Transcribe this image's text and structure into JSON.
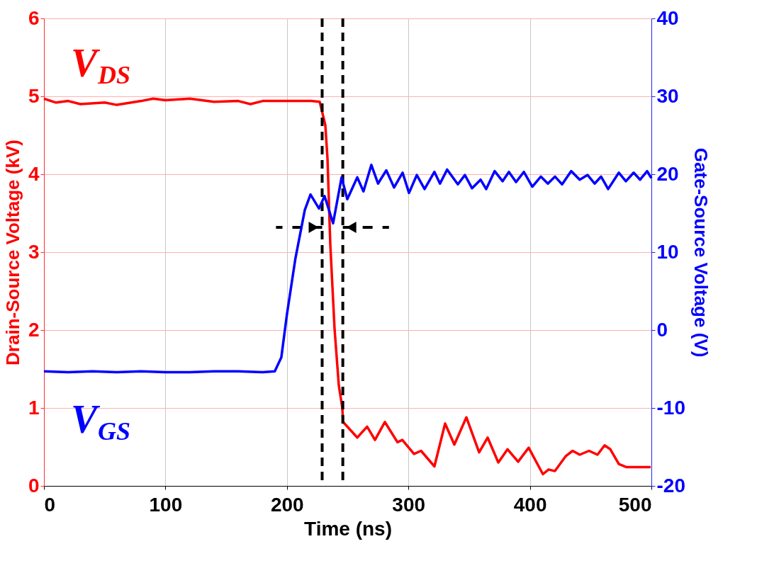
{
  "chart_data": {
    "type": "line",
    "xlabel": "Time (ns)",
    "ylabel": "Drain-Source Voltage (kV)",
    "y2label": "Gate-Source Voltage (V)",
    "xlim": [
      0,
      500
    ],
    "xticks": [
      0,
      100,
      200,
      300,
      400,
      500
    ],
    "ylim": [
      0,
      6
    ],
    "yticks": [
      0,
      1,
      2,
      3,
      4,
      5,
      6
    ],
    "y2lim": [
      -20,
      40
    ],
    "y2ticks": [
      -20,
      -10,
      0,
      10,
      20,
      30,
      40
    ],
    "grid": true,
    "legend": false,
    "marker": "none",
    "line_style": "solid",
    "series": [
      {
        "name": "V$_{DS}$",
        "color": "#ff0000",
        "x": [
          0,
          10,
          20,
          30,
          50,
          60,
          80,
          90,
          100,
          120,
          140,
          160,
          170,
          180,
          200,
          220,
          227,
          231.6,
          233.4,
          235.7,
          239.2,
          242.7,
          245.6,
          246.2,
          257.9,
          266,
          272.5,
          280.6,
          291,
          295,
          304.6,
          310.4,
          321.4,
          330.2,
          337.8,
          347.7,
          358.2,
          365.2,
          374,
          381.6,
          390.3,
          399,
          410.7,
          415.4,
          420.6,
          429.4,
          435.2,
          441,
          448.7,
          455.6,
          461.5,
          466.2,
          473.2,
          479.6,
          499.4
        ],
        "values": [
          4.97,
          4.92,
          4.94,
          4.9,
          4.92,
          4.89,
          4.94,
          4.97,
          4.95,
          4.97,
          4.93,
          4.94,
          4.9,
          4.94,
          4.94,
          4.94,
          4.93,
          4.63,
          4.2,
          3.1,
          2.02,
          1.29,
          1.0,
          0.82,
          0.62,
          0.76,
          0.59,
          0.82,
          0.56,
          0.59,
          0.41,
          0.45,
          0.25,
          0.8,
          0.53,
          0.88,
          0.43,
          0.62,
          0.3,
          0.47,
          0.31,
          0.49,
          0.15,
          0.21,
          0.19,
          0.38,
          0.45,
          0.4,
          0.45,
          0.4,
          0.52,
          0.47,
          0.28,
          0.24,
          0.24
        ]
      },
      {
        "name": "V$_{GS}$",
        "color": "#0000ff",
        "axis": "y2",
        "x": [
          0,
          20,
          40,
          60,
          80,
          100,
          120,
          140,
          160,
          180,
          190,
          195.4,
          200,
          207,
          214.7,
          219.4,
          226.4,
          231,
          238,
          245,
          249.7,
          257.9,
          263,
          269.5,
          275,
          281.8,
          288.2,
          295.2,
          300.5,
          306.9,
          313.3,
          321.4,
          326,
          331.9,
          340.7,
          346.5,
          352.4,
          359.4,
          364,
          371,
          377.5,
          382.7,
          388.6,
          395,
          402,
          409,
          414.8,
          420.7,
          426.5,
          434,
          441,
          447.5,
          453.3,
          458.6,
          464.4,
          473.2,
          479,
          485.4,
          490.7,
          496.5,
          500
        ],
        "values": [
          -5.3,
          -5.4,
          -5.3,
          -5.4,
          -5.3,
          -5.4,
          -5.4,
          -5.3,
          -5.3,
          -5.4,
          -5.3,
          -3.5,
          2.0,
          9.2,
          15.4,
          17.4,
          15.6,
          17.2,
          13.7,
          19.6,
          16.8,
          19.6,
          17.8,
          21.2,
          18.8,
          20.5,
          18.3,
          20.2,
          17.6,
          19.9,
          18.1,
          20.3,
          18.8,
          20.6,
          18.7,
          19.9,
          18.2,
          19.3,
          18.1,
          20.4,
          19.1,
          20.3,
          19.0,
          20.3,
          18.4,
          19.7,
          18.8,
          19.7,
          18.7,
          20.4,
          19.3,
          19.9,
          18.8,
          19.7,
          18.1,
          20.2,
          19.1,
          20.2,
          19.3,
          20.4,
          19.5
        ]
      }
    ],
    "ref_lines": [
      {
        "axis": "x",
        "value": 229,
        "color": "#000000",
        "line_style": "dashed"
      },
      {
        "axis": "x",
        "value": 246,
        "color": "#000000",
        "line_style": "dashed"
      }
    ]
  }
}
